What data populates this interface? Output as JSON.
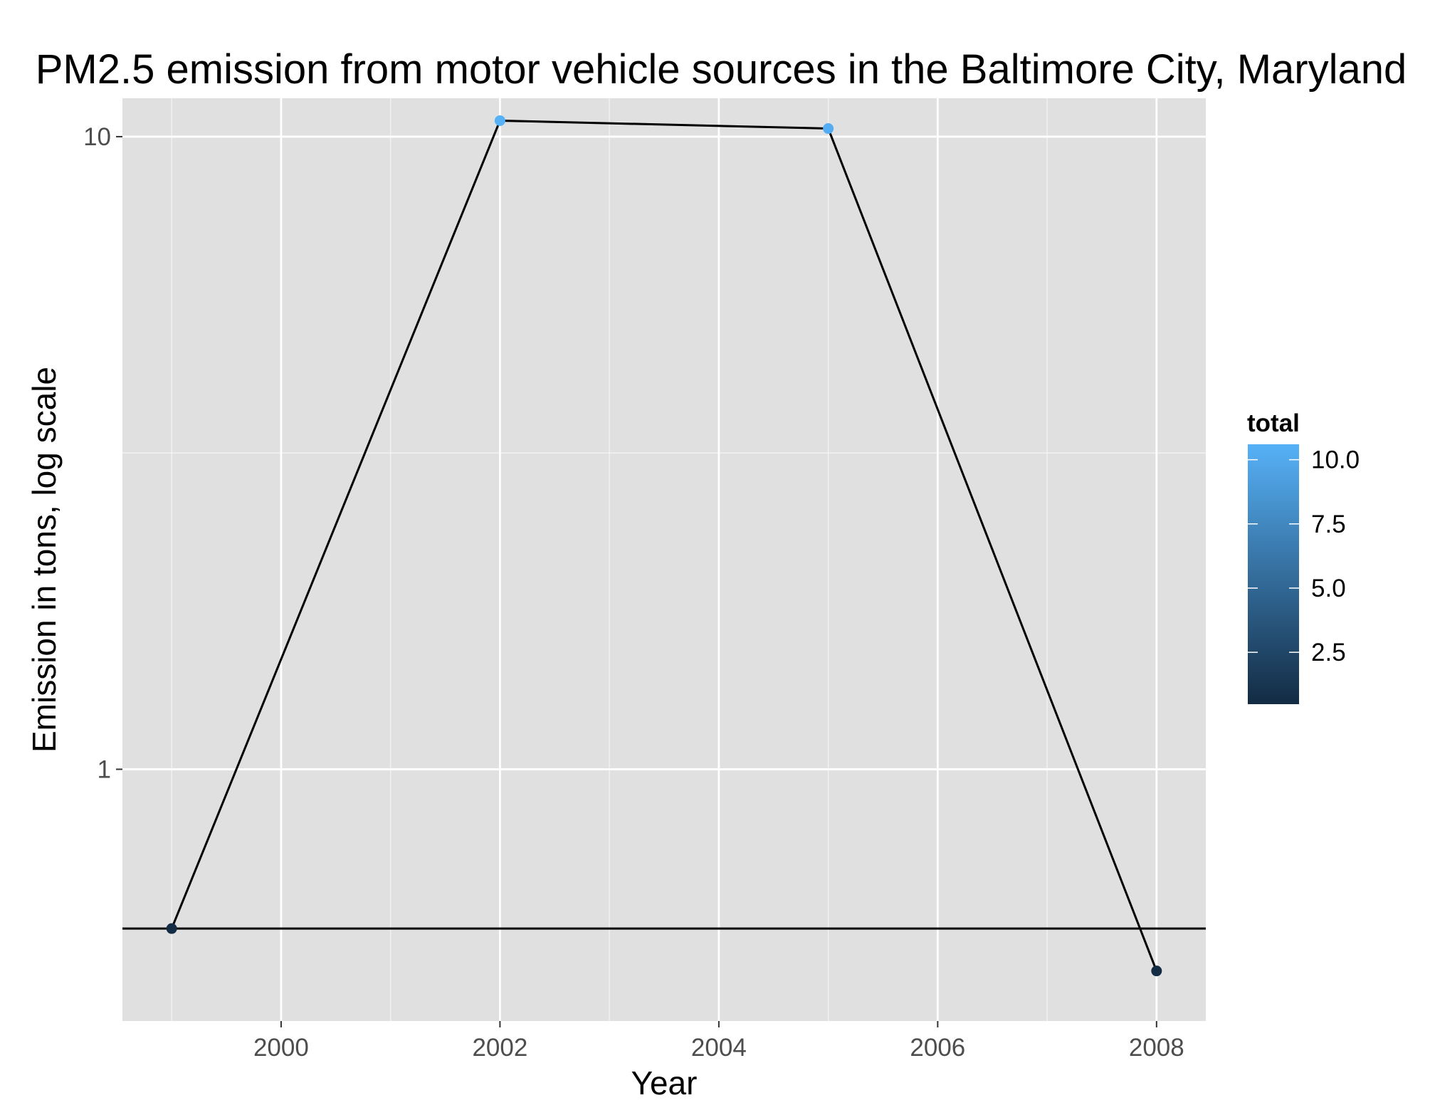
{
  "chart_data": {
    "type": "line",
    "title": "PM2.5 emission from motor vehicle sources in the Baltimore City, Maryland",
    "xlabel": "Year",
    "ylabel": "Emission in tons, log scale",
    "x": [
      1999,
      2002,
      2005,
      2008
    ],
    "series": [
      {
        "values": [
          0.56,
          10.6,
          10.3,
          0.48
        ]
      }
    ],
    "xlim": [
      1998.55,
      2008.45
    ],
    "ylim": [
      0.4,
      11.5
    ],
    "y_scale": "log",
    "x_ticks": [
      2000,
      2002,
      2004,
      2006,
      2008
    ],
    "x_tick_labels": [
      "2000",
      "2002",
      "2004",
      "2006",
      "2008"
    ],
    "y_ticks": [
      1,
      10
    ],
    "y_tick_labels": [
      "1",
      "10"
    ],
    "hline": 0.56,
    "grid": true,
    "legend": {
      "title": "total",
      "position": "right",
      "type": "colorbar",
      "range": [
        0.48,
        10.6
      ],
      "breaks": [
        2.5,
        5.0,
        7.5,
        10.0
      ],
      "break_labels": [
        "2.5",
        "5.0",
        "7.5",
        "10.0"
      ],
      "color_low": "#132b43",
      "color_high": "#56b1f7"
    },
    "colors": {
      "panel_background": "#e0e0e0",
      "grid": "#ffffff",
      "line": "#000000"
    }
  }
}
